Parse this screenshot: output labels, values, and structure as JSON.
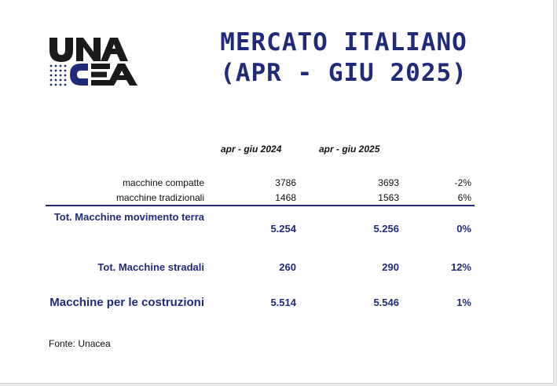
{
  "brand": {
    "logo_text_top": "UNA",
    "logo_text_bottom": "CEA",
    "color_dark": "#1a1a1a",
    "color_blue": "#1f2a78"
  },
  "title": {
    "line1": "MERCATO ITALIANO",
    "line2": "(APR - GIU 2025)"
  },
  "table": {
    "columns": [
      "apr - giu 2024",
      "apr - giu 2025"
    ],
    "rows": [
      {
        "label": "macchine compatte",
        "v2024": "3786",
        "v2025": "3693",
        "change": "-2%"
      },
      {
        "label": "macchine tradizionali",
        "v2024": "1468",
        "v2025": "1563",
        "change": "6%"
      }
    ],
    "totals": [
      {
        "label": "Tot. Macchine movimento terra",
        "v2024": "5.254",
        "v2025": "5.256",
        "change": "0%"
      },
      {
        "label": "Tot. Macchine stradali",
        "v2024": "260",
        "v2025": "290",
        "change": "12%"
      },
      {
        "label": "Macchine per le costruzioni",
        "v2024": "5.514",
        "v2025": "5.546",
        "change": "1%"
      }
    ]
  },
  "source": "Fonte: Unacea"
}
